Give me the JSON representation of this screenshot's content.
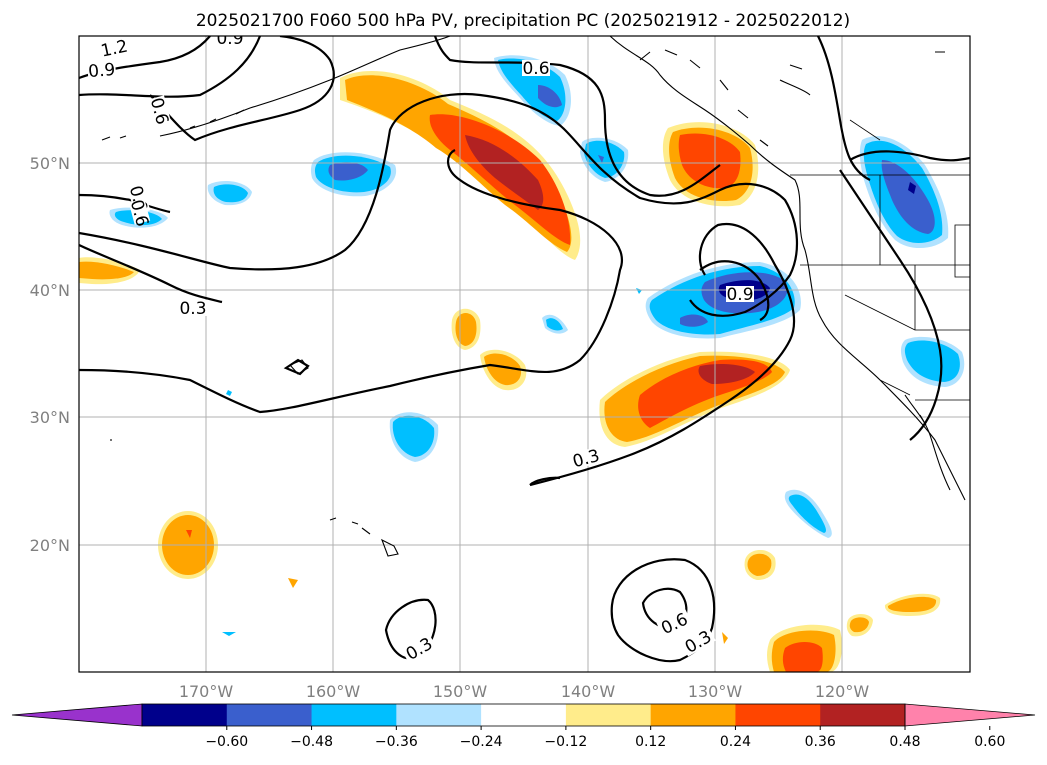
{
  "title": "2025021700 F060 500 hPa PV, precipitation PC (2025021912 - 2025022012)",
  "map": {
    "lon_range": [
      -180,
      -110
    ],
    "lat_range": [
      10,
      60
    ],
    "lon_ticks": [
      "170°W",
      "160°W",
      "150°W",
      "140°W",
      "130°W",
      "120°W"
    ],
    "lat_ticks": [
      "50°N",
      "40°N",
      "30°N",
      "20°N"
    ]
  },
  "colorbar": {
    "tick_labels": [
      "−0.60",
      "−0.48",
      "−0.36",
      "−0.24",
      "−0.12",
      "0.12",
      "0.24",
      "0.36",
      "0.48",
      "0.60"
    ],
    "colors": [
      "#9932cc",
      "#00008b",
      "#3a5fcd",
      "#00bfff",
      "#b0e2ff",
      "#ffffff",
      "#ffec8b",
      "#ffa500",
      "#ff4500",
      "#b22222",
      "#ff82ab"
    ]
  },
  "contour_labels": [
    "1.2",
    "0.9",
    "0.9",
    "0.6",
    "0.6",
    "0.9",
    "0.3",
    "0.6",
    "0.9",
    "0.3",
    "0.6",
    "0.3",
    "0.3"
  ]
}
